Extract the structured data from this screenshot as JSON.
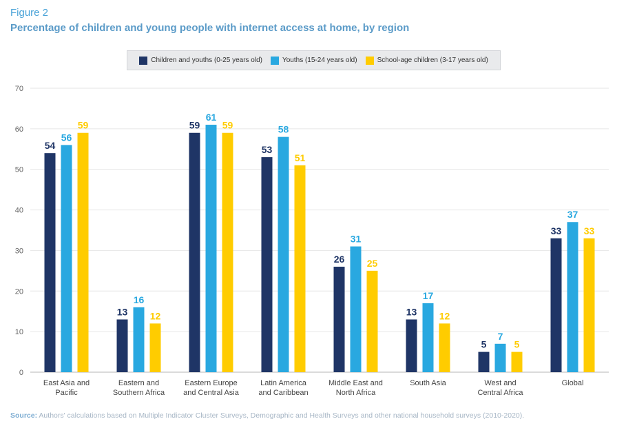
{
  "figure_label": "Figure 2",
  "chart_data": {
    "type": "bar",
    "title": "Percentage of children and young people with internet access at home, by region",
    "xlabel": "",
    "ylabel": "",
    "ylim": [
      0,
      70
    ],
    "yticks": [
      0,
      10,
      20,
      30,
      40,
      50,
      60,
      70
    ],
    "grid": true,
    "legend_position": "top-center",
    "categories": [
      [
        "East Asia and",
        "Pacific"
      ],
      [
        "Eastern and",
        "Southern Africa"
      ],
      [
        "Eastern Europe",
        "and Central Asia"
      ],
      [
        "Latin America",
        "and Caribbean"
      ],
      [
        "Middle East and",
        "North Africa"
      ],
      [
        "South Asia"
      ],
      [
        "West and",
        "Central Africa"
      ],
      [
        "Global"
      ]
    ],
    "series": [
      {
        "name": "Children and youths (0-25 years old)",
        "color": "#1f3566",
        "values": [
          54,
          13,
          59,
          53,
          26,
          13,
          5,
          33
        ]
      },
      {
        "name": "Youths (15-24 years old)",
        "color": "#29a8e0",
        "values": [
          56,
          16,
          61,
          58,
          31,
          17,
          7,
          37
        ]
      },
      {
        "name": "School-age children (3-17 years old)",
        "color": "#ffcc00",
        "values": [
          59,
          12,
          59,
          51,
          25,
          12,
          5,
          33
        ]
      }
    ]
  },
  "source": {
    "label": "Source:",
    "text": " Authors' calculations based on Multiple Indicator Cluster Surveys, Demographic and Health Surveys and other national household surveys (2010-2020)."
  }
}
